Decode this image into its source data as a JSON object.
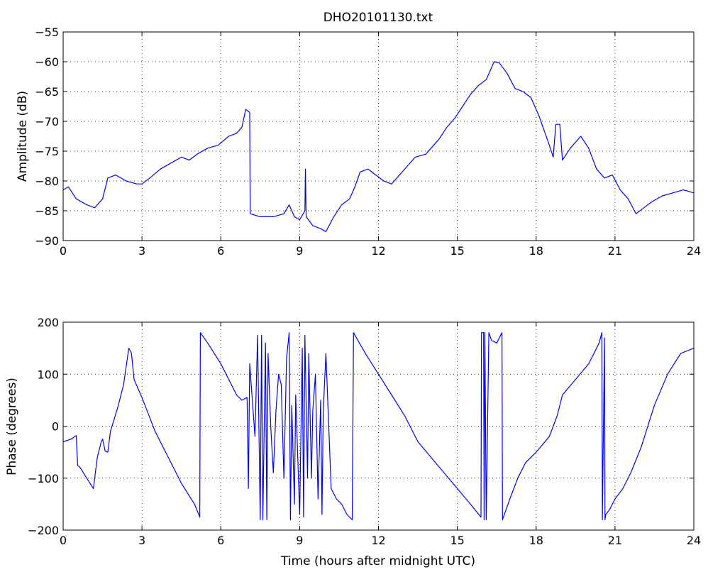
{
  "chart_data": [
    {
      "type": "line",
      "title": "DHO20101130.txt",
      "xlabel": "",
      "ylabel": "Amplitude (dB)",
      "xlim": [
        0,
        24
      ],
      "ylim": [
        -90,
        -55
      ],
      "xticks": [
        0,
        3,
        6,
        9,
        12,
        15,
        18,
        21,
        24
      ],
      "yticks": [
        -90,
        -85,
        -80,
        -75,
        -70,
        -65,
        -60,
        -55
      ],
      "grid": true,
      "line_color": "#0000ff",
      "series": [
        {
          "x": [
            0,
            0.2,
            0.5,
            0.9,
            1.2,
            1.5,
            1.7,
            2.0,
            2.4,
            2.8,
            3.0,
            3.3,
            3.7,
            4.1,
            4.5,
            4.8,
            5.1,
            5.5,
            5.9,
            6.3,
            6.6,
            6.8,
            6.95,
            7.1,
            7.12,
            7.5,
            8.0,
            8.4,
            8.6,
            8.8,
            9.0,
            9.2,
            9.22,
            9.25,
            9.5,
            9.8,
            10.0,
            10.3,
            10.6,
            10.9,
            11.1,
            11.3,
            11.6,
            11.9,
            12.2,
            12.5,
            12.8,
            13.1,
            13.4,
            13.8,
            14.0,
            14.3,
            14.6,
            14.9,
            15.2,
            15.5,
            15.8,
            16.1,
            16.4,
            16.6,
            16.9,
            17.2,
            17.5,
            17.8,
            18.1,
            18.3,
            18.5,
            18.65,
            18.75,
            18.9,
            19.0,
            19.3,
            19.7,
            20.0,
            20.3,
            20.6,
            20.9,
            21.2,
            21.5,
            21.8,
            22.1,
            22.4,
            22.8,
            23.2,
            23.6,
            24.0
          ],
          "y": [
            -81.5,
            -81.0,
            -83.0,
            -84.0,
            -84.5,
            -83.0,
            -79.5,
            -79.0,
            -80.0,
            -80.5,
            -80.5,
            -79.5,
            -78.0,
            -77.0,
            -76.0,
            -76.5,
            -75.5,
            -74.5,
            -74.0,
            -72.5,
            -72.0,
            -71.0,
            -68.0,
            -68.5,
            -85.5,
            -86.0,
            -86.0,
            -85.5,
            -84.0,
            -86.0,
            -86.5,
            -85.0,
            -78.0,
            -86.0,
            -87.5,
            -88.0,
            -88.5,
            -86.0,
            -84.0,
            -83.0,
            -81.0,
            -78.5,
            -78.0,
            -79.0,
            -80.0,
            -80.5,
            -79.0,
            -77.5,
            -76.0,
            -75.5,
            -74.5,
            -73.0,
            -71.0,
            -69.5,
            -67.5,
            -65.5,
            -64.0,
            -63.0,
            -60.0,
            -60.2,
            -62.0,
            -64.5,
            -65.0,
            -66.0,
            -69.0,
            -71.5,
            -74.0,
            -76.0,
            -70.5,
            -70.5,
            -76.5,
            -74.5,
            -72.5,
            -74.5,
            -78.0,
            -79.5,
            -79.0,
            -81.5,
            -83.0,
            -85.5,
            -84.5,
            -83.5,
            -82.5,
            -82.0,
            -81.5,
            -82.0
          ]
        }
      ]
    },
    {
      "type": "line",
      "title": "",
      "xlabel": "Time (hours after midnight UTC)",
      "ylabel": "Phase (degrees)",
      "xlim": [
        0,
        24
      ],
      "ylim": [
        -200,
        200
      ],
      "xticks": [
        0,
        3,
        6,
        9,
        12,
        15,
        18,
        21,
        24
      ],
      "yticks": [
        -200,
        -100,
        0,
        100,
        200
      ],
      "grid": true,
      "line_color": "#0000ff",
      "series": [
        {
          "x": [
            0,
            0.3,
            0.5,
            0.55,
            0.65,
            0.9,
            1.15,
            1.3,
            1.45,
            1.5,
            1.6,
            1.7,
            1.8,
            2.1,
            2.3,
            2.5,
            2.6,
            2.7,
            3.0,
            3.5,
            4.0,
            4.5,
            5.0,
            5.2,
            5.22,
            5.5,
            6.0,
            6.3,
            6.6,
            6.8,
            7.0,
            7.05,
            7.1,
            7.2,
            7.3,
            7.4,
            7.5,
            7.55,
            7.6,
            7.7,
            7.75,
            7.8,
            7.9,
            8.0,
            8.1,
            8.2,
            8.3,
            8.4,
            8.5,
            8.6,
            8.65,
            8.7,
            8.8,
            8.85,
            9.0,
            9.1,
            9.15,
            9.2,
            9.3,
            9.35,
            9.45,
            9.5,
            9.6,
            9.7,
            9.8,
            9.85,
            9.9,
            10.0,
            10.1,
            10.2,
            10.4,
            10.6,
            10.8,
            11.0,
            11.05,
            11.5,
            12.0,
            12.5,
            13.0,
            13.5,
            14.0,
            14.5,
            15.0,
            15.5,
            15.9,
            15.92,
            16.0,
            16.02,
            16.05,
            16.1,
            16.2,
            16.3,
            16.5,
            16.7,
            16.72,
            17.0,
            17.3,
            17.6,
            18.0,
            18.5,
            18.8,
            19.0,
            19.5,
            20.0,
            20.4,
            20.5,
            20.52,
            20.6,
            20.62,
            20.65,
            20.8,
            21.0,
            21.3,
            21.6,
            22.0,
            22.5,
            23.0,
            23.5,
            24.0
          ],
          "y": [
            -30,
            -25,
            -18,
            -75,
            -80,
            -100,
            -120,
            -60,
            -30,
            -25,
            -48,
            -50,
            -10,
            40,
            80,
            150,
            140,
            90,
            55,
            -10,
            -60,
            -110,
            -150,
            -175,
            180,
            160,
            120,
            90,
            60,
            50,
            55,
            -120,
            120,
            50,
            -20,
            175,
            -180,
            175,
            -180,
            160,
            -180,
            140,
            0,
            -90,
            30,
            100,
            80,
            -100,
            130,
            180,
            -180,
            40,
            -150,
            60,
            -170,
            150,
            -175,
            175,
            -100,
            140,
            -100,
            30,
            100,
            -140,
            50,
            -170,
            30,
            140,
            10,
            -120,
            -140,
            -150,
            -170,
            -180,
            180,
            140,
            100,
            60,
            20,
            -30,
            -60,
            -90,
            -120,
            -150,
            -175,
            180,
            180,
            -180,
            180,
            -180,
            180,
            165,
            160,
            180,
            -180,
            -140,
            -100,
            -70,
            -50,
            -20,
            20,
            60,
            90,
            120,
            160,
            180,
            -180,
            170,
            -180,
            -170,
            -160,
            -140,
            -120,
            -90,
            -40,
            40,
            100,
            140,
            150
          ]
        }
      ]
    }
  ]
}
